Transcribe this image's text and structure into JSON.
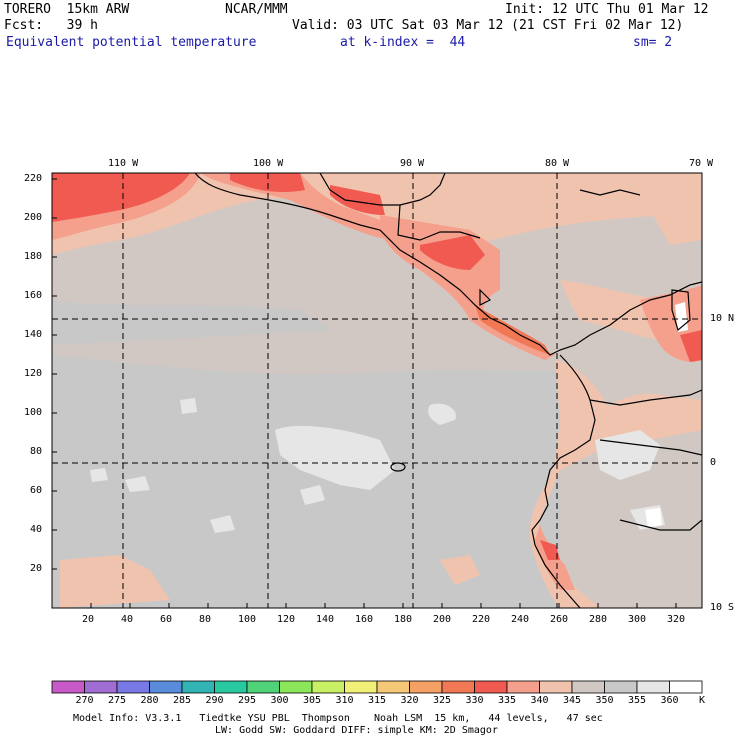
{
  "header": {
    "model": "TORERO  15km ARW",
    "org": "NCAR/MMM",
    "init": "Init: 12 UTC Thu 01 Mar 12",
    "fcst": "Fcst:   39 h",
    "valid": "Valid: 03 UTC Sat 03 Mar 12 (21 CST Fri 02 Mar 12)",
    "field": "Equivalent potential temperature",
    "level": "at k-index =  44",
    "smoothing": "sm= 2"
  },
  "map": {
    "lon_labels": [
      "110 W",
      "100 W",
      "90 W",
      "80 W",
      "70 W"
    ],
    "lat_labels": [
      "10 N",
      "0",
      "10 S"
    ],
    "x_ticks": [
      "20",
      "40",
      "60",
      "80",
      "100",
      "120",
      "140",
      "160",
      "180",
      "200",
      "220",
      "240",
      "260",
      "280",
      "300",
      "320"
    ],
    "y_ticks": [
      "20",
      "40",
      "60",
      "80",
      "100",
      "120",
      "140",
      "160",
      "180",
      "200",
      "220"
    ]
  },
  "colorbar": {
    "unit": "K",
    "labels": [
      "270",
      "275",
      "280",
      "285",
      "290",
      "295",
      "300",
      "305",
      "310",
      "315",
      "320",
      "325",
      "330",
      "335",
      "340",
      "345",
      "350",
      "355",
      "360"
    ],
    "colors": [
      "#c85ac8",
      "#a06ed2",
      "#7878e6",
      "#5a8cdc",
      "#32b4b4",
      "#28c8a0",
      "#50d278",
      "#8ce65a",
      "#c8f064",
      "#f0f078",
      "#f5c878",
      "#f5a064",
      "#f07855",
      "#f05a50",
      "#f5a08c",
      "#f0c3af",
      "#d2c8c3",
      "#c8c8c8",
      "#e6e6e6",
      "#ffffff"
    ]
  },
  "footer": {
    "line1": "Model Info: V3.3.1   Tiedtke YSU PBL  Thompson    Noah LSM  15 km,   44 levels,   47 sec",
    "line2": "LW: Godd SW: Goddard DIFF: simple KM: 2D Smagor"
  }
}
